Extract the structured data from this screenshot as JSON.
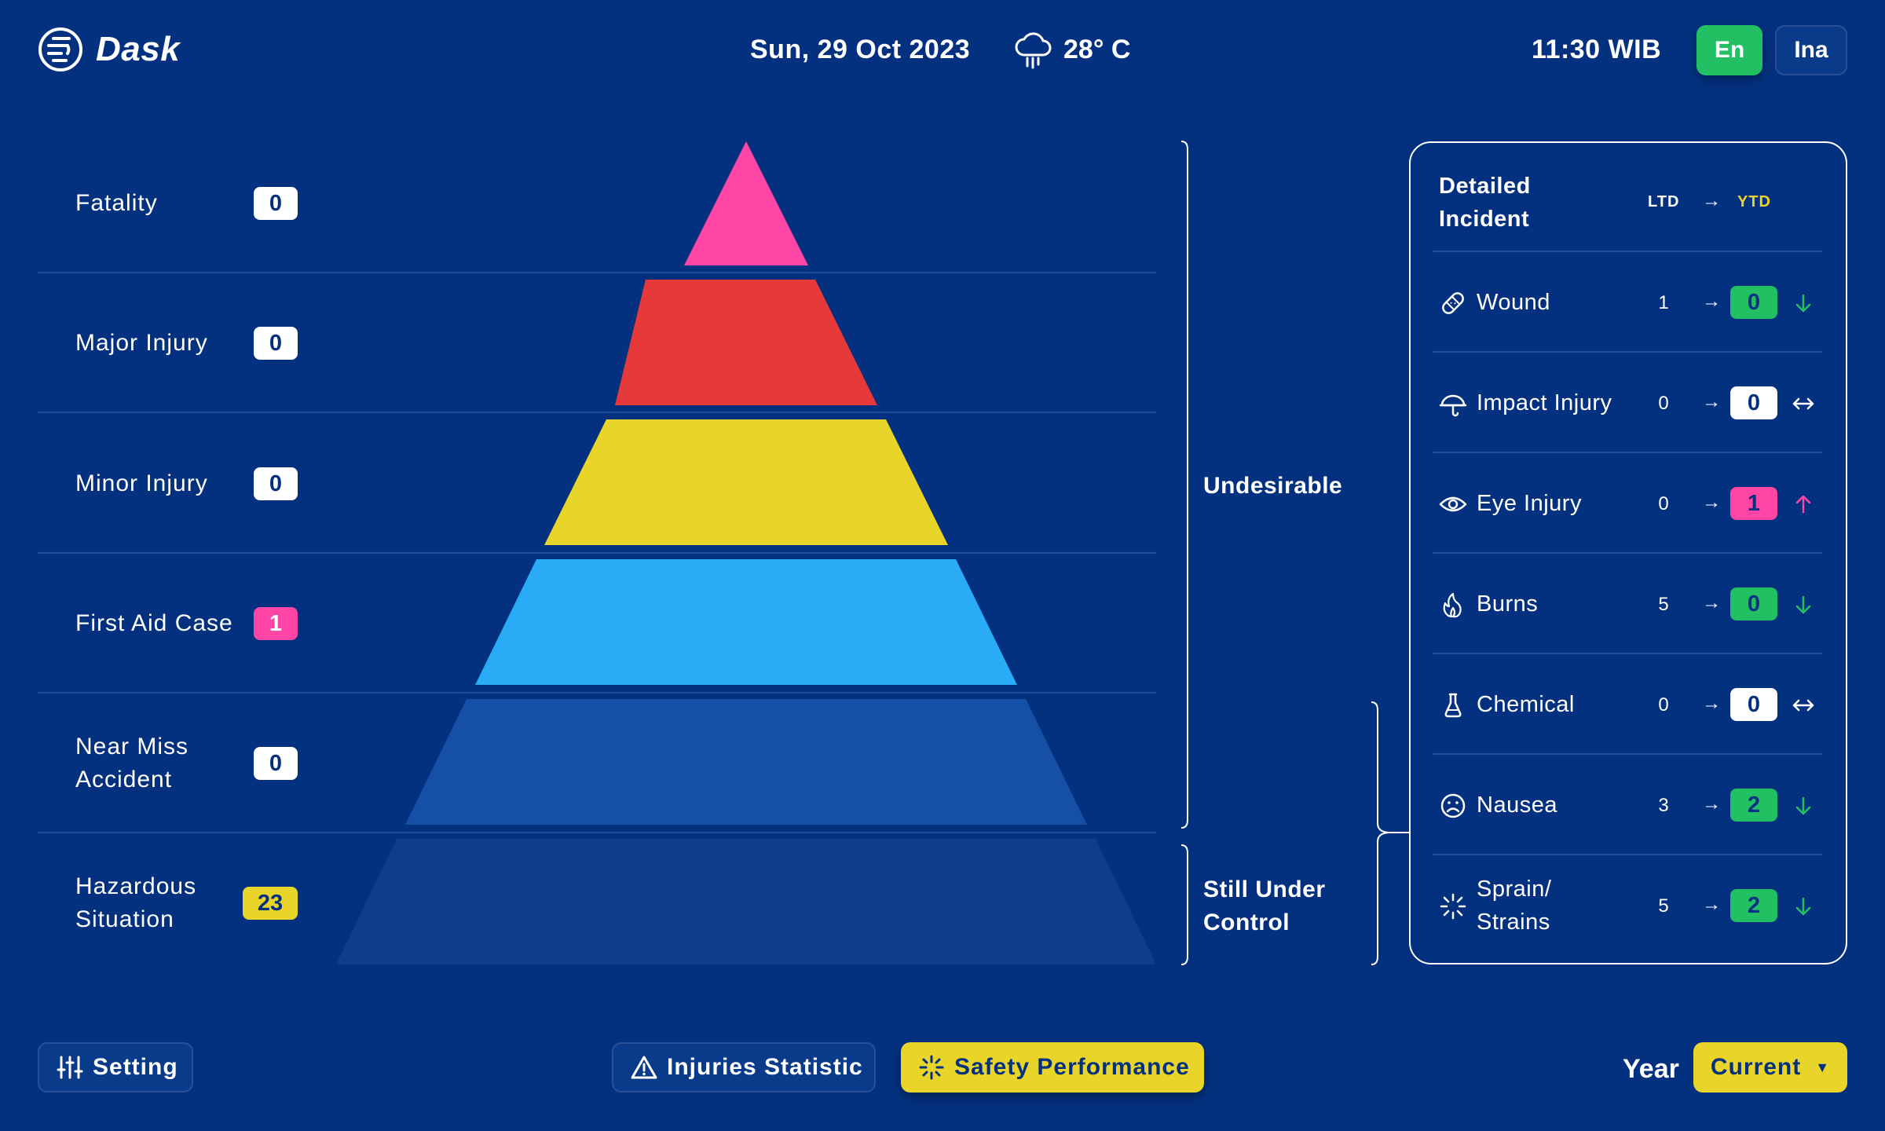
{
  "header": {
    "app_name": "Dask",
    "date": "Sun, 29 Oct 2023",
    "weather": "28° C",
    "weather_icon": "cloud-rain-icon",
    "time": "11:30 WIB",
    "languages": [
      "En",
      "Ina"
    ],
    "active_language": "En"
  },
  "pyramid": {
    "levels": [
      {
        "label": "Fatality",
        "count": "0",
        "color": "#ff45a5",
        "badge": "white"
      },
      {
        "label": "Major Injury",
        "count": "0",
        "color": "#e63a3a",
        "badge": "white"
      },
      {
        "label": "Minor Injury",
        "count": "0",
        "color": "#e9d52a",
        "badge": "white"
      },
      {
        "label": "First Aid Case",
        "count": "1",
        "color": "#29abf5",
        "badge": "pink"
      },
      {
        "label": "Near Miss Accident",
        "label_lines": [
          "Near Miss",
          "Accident"
        ],
        "count": "0",
        "color": "#164fa6",
        "badge": "white"
      },
      {
        "label": "Hazardous Situation",
        "label_lines": [
          "Hazardous",
          "Situation"
        ],
        "count": "23",
        "color": "#0f3d8c",
        "badge": "yellow"
      }
    ],
    "bracket_undesirable": "Undesirable",
    "bracket_control_lines": [
      "Still Under",
      "Control"
    ]
  },
  "detail": {
    "title_lines": [
      "Detailed",
      "Incident"
    ],
    "col_ltd": "LTD",
    "col_arrow": "→",
    "col_ytd": "YTD",
    "incidents": [
      {
        "label_lines": [
          "Wound"
        ],
        "icon": "bandage-icon",
        "ltd": "1",
        "ytd": "0",
        "ytd_style": "green",
        "trend": "down"
      },
      {
        "label_lines": [
          "Impact Injury"
        ],
        "icon": "hard-hat-icon",
        "ltd": "0",
        "ytd": "0",
        "ytd_style": "white",
        "trend": "flat"
      },
      {
        "label_lines": [
          "Eye Injury"
        ],
        "icon": "eye-icon",
        "ltd": "0",
        "ytd": "1",
        "ytd_style": "pink",
        "trend": "up"
      },
      {
        "label_lines": [
          "Burns"
        ],
        "icon": "flame-icon",
        "ltd": "5",
        "ytd": "0",
        "ytd_style": "green",
        "trend": "down"
      },
      {
        "label_lines": [
          "Chemical"
        ],
        "icon": "flask-icon",
        "ltd": "0",
        "ytd": "0",
        "ytd_style": "white",
        "trend": "flat"
      },
      {
        "label_lines": [
          "Nausea"
        ],
        "icon": "frown-icon",
        "ltd": "3",
        "ytd": "2",
        "ytd_style": "green",
        "trend": "down"
      },
      {
        "label_lines": [
          "Sprain/",
          "Strains"
        ],
        "icon": "burst-icon",
        "ltd": "5",
        "ytd": "2",
        "ytd_style": "green",
        "trend": "down"
      }
    ],
    "trend_colors": {
      "down": "#22c062",
      "flat": "#ffffff",
      "up": "#ff45a5"
    }
  },
  "footer": {
    "setting_label": "Setting",
    "injuries_label": "Injuries Statistic",
    "safety_label": "Safety Performance",
    "year_label": "Year",
    "year_value": "Current",
    "active_tab": "Safety Performance"
  }
}
